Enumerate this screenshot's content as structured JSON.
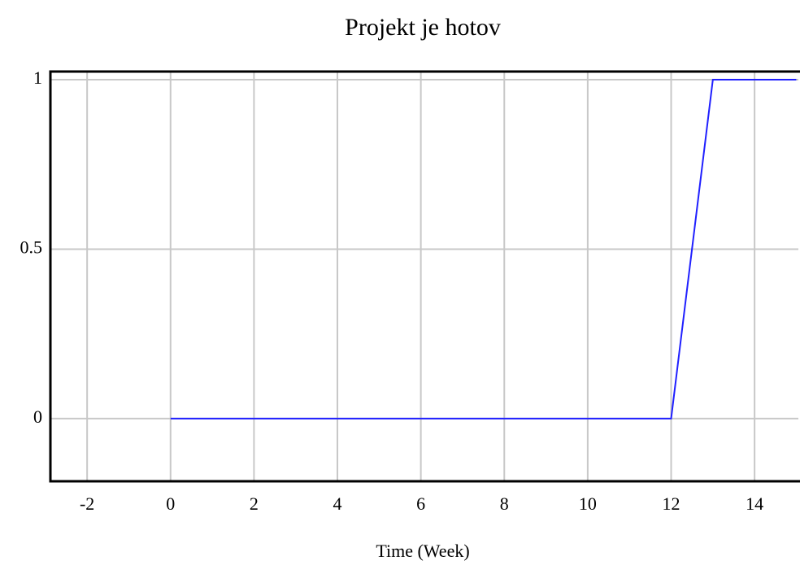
{
  "chart_data": {
    "type": "line",
    "title": "Projekt je hotov",
    "x_label": "Time (Week)",
    "x": [
      0,
      12,
      13,
      15
    ],
    "series": [
      {
        "name": "Projekt je hotov",
        "color": "#2020ff",
        "values": [
          0,
          0,
          1,
          1
        ]
      }
    ],
    "xlim": [
      -2.88,
      15.05
    ],
    "xticks": [
      -2,
      0,
      2,
      4,
      6,
      8,
      10,
      12,
      14
    ],
    "ylim": [
      -0.185,
      1.024
    ],
    "yticks": [
      0,
      0.5,
      1
    ],
    "grid": true
  }
}
